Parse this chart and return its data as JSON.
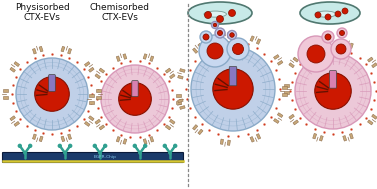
{
  "bg_color": "#ffffff",
  "label_physisorbed": "Physisorbed\nCTX-EVs",
  "label_chemisorbed": "Chemisorbed\nCTX-EVs",
  "label_fontsize": 6.5,
  "ev_blue_outer": "#8aaac8",
  "ev_blue_mid": "#c0d0e8",
  "ev_pink_outer": "#d898b8",
  "ev_pink_mid": "#ecc8d8",
  "ev_red": "#cc1800",
  "ev_red_dark": "#881000",
  "purple_rect": "#8878c0",
  "pink_rect": "#d880b0",
  "ab_fill": "#c8a878",
  "ab_edge": "#907050",
  "ab_teal": "#40a898",
  "teal_y": "#30a090",
  "substrate_dark": "#1a3a6a",
  "substrate_mid": "#2a5090",
  "substrate_yellow": "#d8c830",
  "egfr_text": "#88bbdd",
  "divider_color": "#888888",
  "cell_blue_fill": "#c8d8f0",
  "cell_blue_edge": "#7090b8",
  "cell_pink_fill": "#f0c8d8",
  "cell_pink_edge": "#c07898",
  "cell_mint": "#c8eae8",
  "cell_mint_edge": "#507870"
}
